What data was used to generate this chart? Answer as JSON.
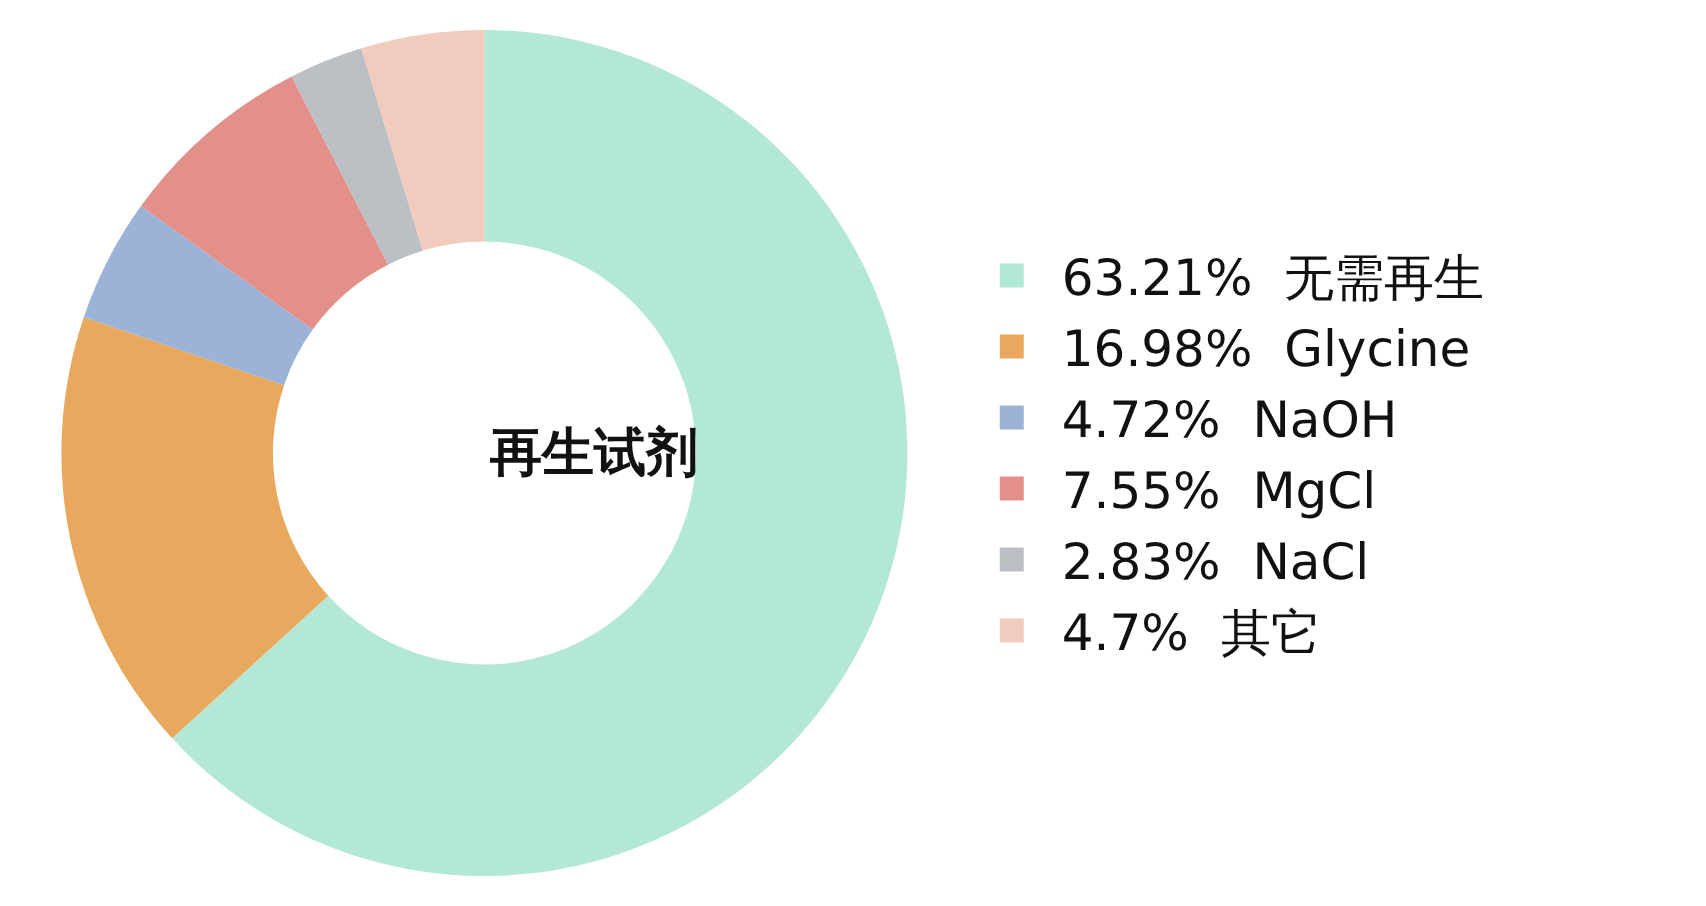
{
  "chart_data": {
    "type": "donut",
    "title": "再生试剂",
    "categories": [
      "无需再生",
      "Glycine",
      "NaOH",
      "MgCl",
      "NaCl",
      "其它"
    ],
    "values": [
      63.21,
      16.98,
      4.72,
      7.55,
      2.83,
      4.7
    ],
    "value_labels": [
      "63.21%",
      "16.98%",
      "4.72%",
      "7.55%",
      "2.83%",
      "4.7%"
    ],
    "colors": [
      "#b3e8d6",
      "#e8a85e",
      "#9bb3d6",
      "#e38f8a",
      "#bcc0c4",
      "#f2cbbf"
    ],
    "legend": "right"
  }
}
